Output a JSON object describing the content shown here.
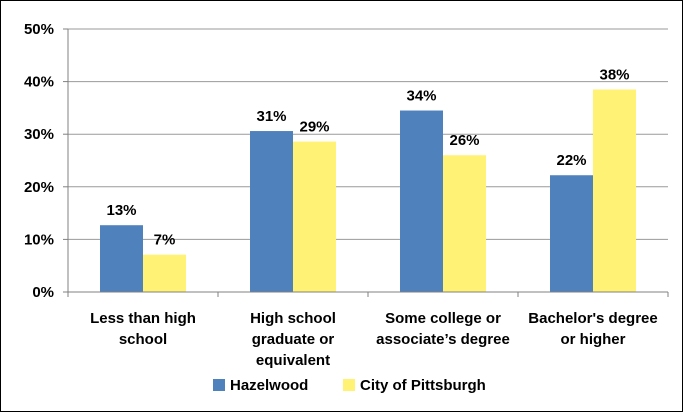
{
  "chart_data": {
    "type": "bar",
    "title": "",
    "xlabel": "",
    "ylabel": "",
    "ylim": [
      0,
      50
    ],
    "y_ticks": [
      "0%",
      "10%",
      "20%",
      "30%",
      "40%",
      "50%"
    ],
    "y_tick_values": [
      0,
      10,
      20,
      30,
      40,
      50
    ],
    "grid": true,
    "legend_position": "bottom",
    "categories": [
      [
        "Less than high",
        "school"
      ],
      [
        "High school",
        "graduate or",
        "equivalent"
      ],
      [
        "Some college or",
        "associate’s degree"
      ],
      [
        "Bachelor's degree",
        "or higher"
      ]
    ],
    "series": [
      {
        "name": "Hazelwood",
        "color": "#4f81bd",
        "values": [
          12.7,
          30.6,
          34.5,
          22.2
        ],
        "labels": [
          "13%",
          "31%",
          "34%",
          "22%"
        ]
      },
      {
        "name": "City of Pittsburgh",
        "color": "#fff275",
        "values": [
          7.1,
          28.6,
          26.0,
          38.5
        ],
        "labels": [
          "7%",
          "29%",
          "26%",
          "38%"
        ]
      }
    ]
  }
}
